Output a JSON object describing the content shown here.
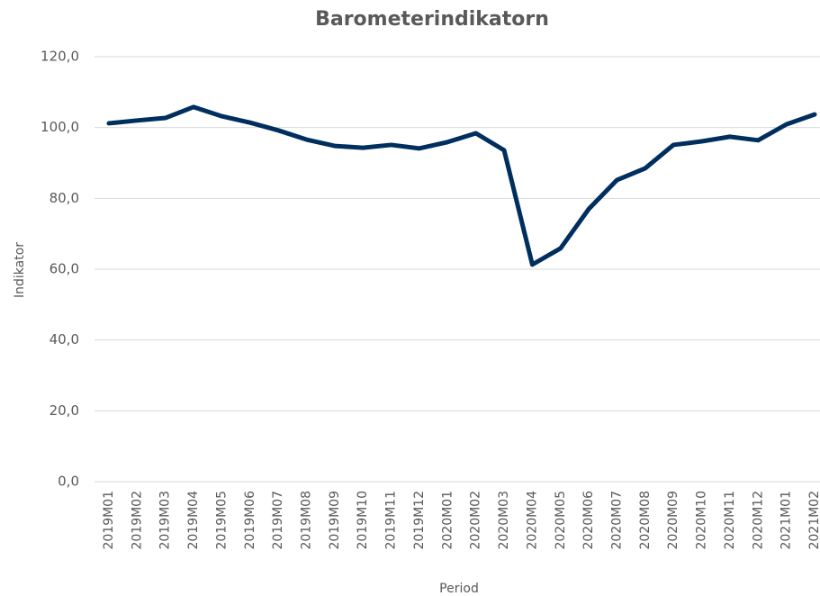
{
  "chart_data": {
    "type": "line",
    "title": "Barometerindikatorn",
    "x_label": "Period",
    "y_label": "Indikator",
    "categories": [
      "2019M01",
      "2019M02",
      "2019M03",
      "2019M04",
      "2019M05",
      "2019M06",
      "2019M07",
      "2019M08",
      "2019M09",
      "2019M10",
      "2019M11",
      "2019M12",
      "2020M01",
      "2020M02",
      "2020M03",
      "2020M04",
      "2020M05",
      "2020M06",
      "2020M07",
      "2020M08",
      "2020M09",
      "2020M10",
      "2020M11",
      "2020M12",
      "2021M01",
      "2021M02"
    ],
    "values": [
      101.2,
      102.0,
      102.7,
      105.8,
      103.2,
      101.4,
      99.2,
      96.6,
      94.8,
      94.3,
      95.1,
      94.1,
      95.9,
      98.4,
      93.6,
      61.3,
      65.9,
      77.0,
      85.2,
      88.5,
      95.1,
      96.1,
      97.4,
      96.4,
      100.9,
      103.7
    ],
    "color": "#002f5f",
    "ylim": [
      0,
      120
    ],
    "yticks": [
      {
        "value": 0,
        "label": "0,0"
      },
      {
        "value": 20,
        "label": "20,0"
      },
      {
        "value": 40,
        "label": "40,0"
      },
      {
        "value": 60,
        "label": "60,0"
      },
      {
        "value": 80,
        "label": "80,0"
      },
      {
        "value": 100,
        "label": "100,0"
      },
      {
        "value": 120,
        "label": "120,0"
      }
    ],
    "grid": true
  }
}
